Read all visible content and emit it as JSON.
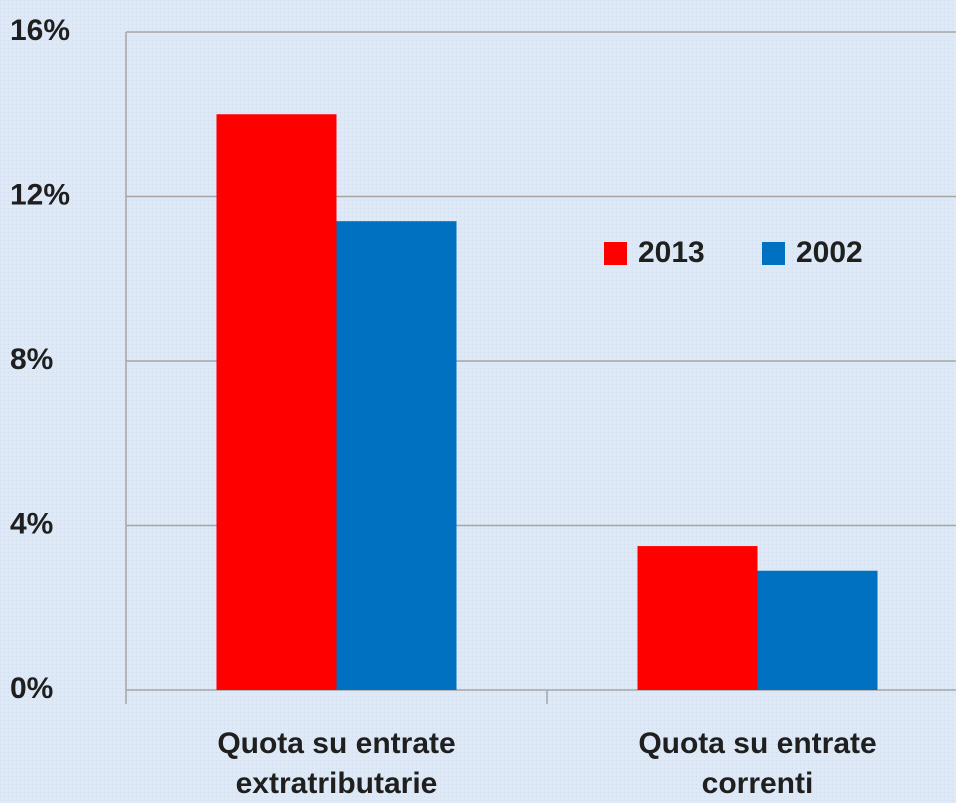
{
  "chart_data": {
    "type": "bar",
    "categories": [
      "Quota su entrate extratributarie",
      "Quota su entrate correnti"
    ],
    "series": [
      {
        "name": "2013",
        "color": "#ff0000",
        "values": [
          14.0,
          3.5
        ]
      },
      {
        "name": "2002",
        "color": "#0070c0",
        "values": [
          11.4,
          2.9
        ]
      }
    ],
    "ylim": [
      0,
      16
    ],
    "yticks": [
      {
        "value": 0,
        "label": "0%"
      },
      {
        "value": 4,
        "label": "4%"
      },
      {
        "value": 8,
        "label": "8%"
      },
      {
        "value": 12,
        "label": "12%"
      },
      {
        "value": 16,
        "label": "16%"
      }
    ],
    "grid": true
  }
}
